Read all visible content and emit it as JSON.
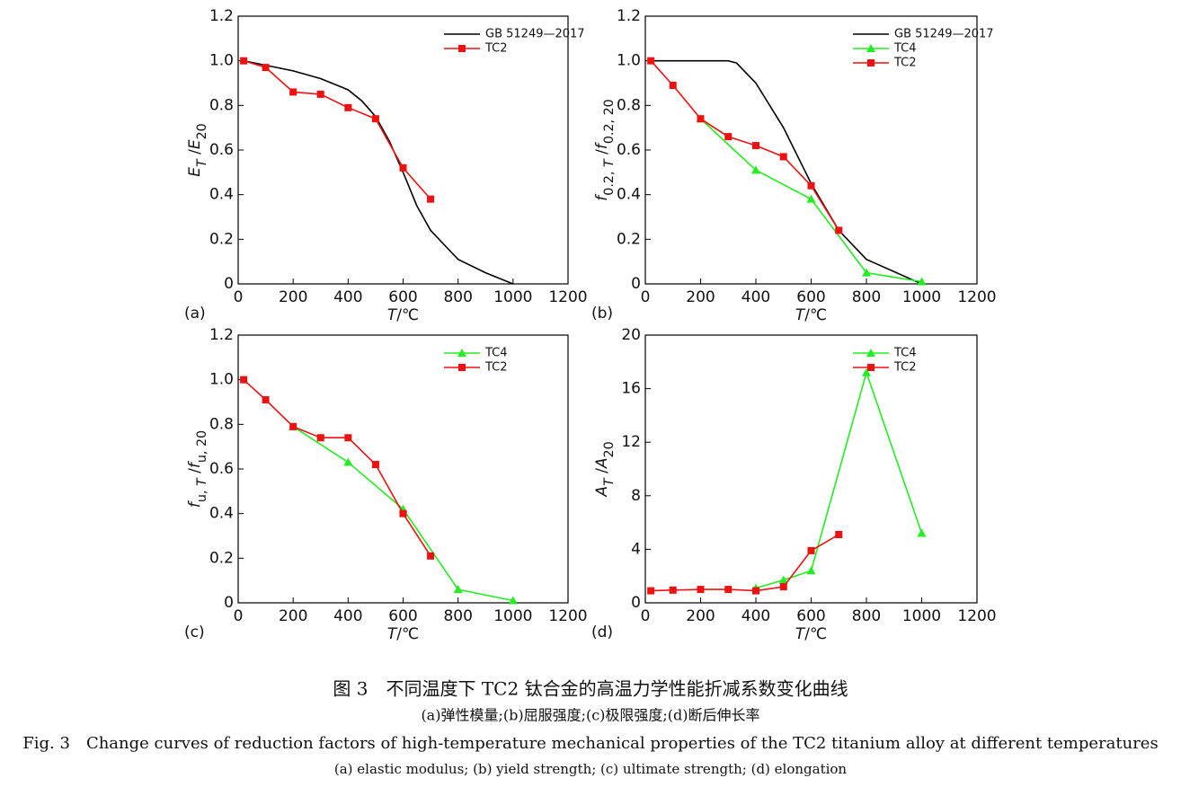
{
  "chart_data": [
    {
      "type": "line",
      "panel_label": "(a)",
      "xlabel": [
        {
          "text": "T",
          "italic": true
        },
        {
          "text": "/℃"
        }
      ],
      "ylabel": [
        {
          "text": "E",
          "italic": true
        },
        {
          "text": "T",
          "italic": true,
          "sub": true
        },
        {
          "text": " /"
        },
        {
          "text": "E",
          "italic": true
        },
        {
          "text": "20",
          "sub": true
        }
      ],
      "xlim": [
        0,
        1200
      ],
      "ylim": [
        0,
        1.2
      ],
      "xticks": [
        0,
        200,
        400,
        600,
        800,
        1000,
        1200
      ],
      "yticks": [
        0,
        0.2,
        0.4,
        0.6,
        0.8,
        {
          "value": 1,
          "label": "1.0"
        },
        {
          "value": 1.2,
          "label": "1.2"
        }
      ],
      "series": [
        {
          "name": "GB 51249—2017",
          "color": "#000000",
          "x": [
            20,
            100,
            200,
            300,
            400,
            450,
            500,
            550,
            600,
            650,
            700,
            800,
            900,
            1000
          ],
          "values": [
            1.0,
            0.98,
            0.955,
            0.92,
            0.87,
            0.82,
            0.75,
            0.64,
            0.5,
            0.35,
            0.24,
            0.11,
            0.05,
            0
          ]
        },
        {
          "name": "TC2",
          "color": "#ee1111",
          "marker": "square",
          "x": [
            20,
            100,
            200,
            300,
            400,
            500,
            600,
            700
          ],
          "values": [
            1.0,
            0.97,
            0.86,
            0.85,
            0.79,
            0.74,
            0.52,
            0.38
          ]
        }
      ]
    },
    {
      "type": "line",
      "panel_label": "(b)",
      "xlabel": [
        {
          "text": "T",
          "italic": true
        },
        {
          "text": "/℃"
        }
      ],
      "ylabel": [
        {
          "text": "f",
          "italic": true
        },
        {
          "text": "0.2, ",
          "sub": true
        },
        {
          "text": "T",
          "italic": true,
          "sub": true
        },
        {
          "text": " /"
        },
        {
          "text": "f",
          "italic": true
        },
        {
          "text": "0.2, 20",
          "sub": true
        }
      ],
      "xlim": [
        0,
        1200
      ],
      "ylim": [
        0,
        1.2
      ],
      "xticks": [
        0,
        200,
        400,
        600,
        800,
        1000,
        1200
      ],
      "yticks": [
        0,
        0.2,
        0.4,
        0.6,
        0.8,
        {
          "value": 1,
          "label": "1.0"
        },
        {
          "value": 1.2,
          "label": "1.2"
        }
      ],
      "series": [
        {
          "name": "GB 51249—2017",
          "color": "#000000",
          "x": [
            20,
            300,
            330,
            400,
            500,
            600,
            700,
            800,
            1000
          ],
          "values": [
            1.0,
            1.0,
            0.99,
            0.9,
            0.7,
            0.45,
            0.24,
            0.11,
            0
          ]
        },
        {
          "name": "TC4",
          "color": "#22ee22",
          "marker": "triangle",
          "x": [
            200,
            400,
            600,
            800,
            1000
          ],
          "values": [
            0.74,
            0.51,
            0.38,
            0.05,
            0.01
          ]
        },
        {
          "name": "TC2",
          "color": "#ee1111",
          "marker": "square",
          "x": [
            20,
            100,
            200,
            300,
            400,
            500,
            600,
            700
          ],
          "values": [
            1.0,
            0.89,
            0.74,
            0.66,
            0.62,
            0.57,
            0.44,
            0.24
          ]
        }
      ]
    },
    {
      "type": "line",
      "panel_label": "(c)",
      "xlabel": [
        {
          "text": "T",
          "italic": true
        },
        {
          "text": "/℃"
        }
      ],
      "ylabel": [
        {
          "text": "f",
          "italic": true
        },
        {
          "text": "u, ",
          "sub": true
        },
        {
          "text": "T",
          "italic": true,
          "sub": true
        },
        {
          "text": " /"
        },
        {
          "text": "f",
          "italic": true
        },
        {
          "text": "u, 20",
          "sub": true
        }
      ],
      "xlim": [
        0,
        1200
      ],
      "ylim": [
        0,
        1.2
      ],
      "xticks": [
        0,
        200,
        400,
        600,
        800,
        1000,
        1200
      ],
      "yticks": [
        0,
        0.2,
        0.4,
        0.6,
        0.8,
        {
          "value": 1,
          "label": "1.0"
        },
        {
          "value": 1.2,
          "label": "1.2"
        }
      ],
      "series": [
        {
          "name": "TC4",
          "color": "#22ee22",
          "marker": "triangle",
          "x": [
            200,
            400,
            600,
            800,
            1000
          ],
          "values": [
            0.79,
            0.63,
            0.42,
            0.06,
            0.01
          ]
        },
        {
          "name": "TC2",
          "color": "#ee1111",
          "marker": "square",
          "x": [
            20,
            100,
            200,
            300,
            400,
            500,
            600,
            700
          ],
          "values": [
            1.0,
            0.91,
            0.79,
            0.74,
            0.74,
            0.62,
            0.4,
            0.21
          ]
        }
      ]
    },
    {
      "type": "line",
      "panel_label": "(d)",
      "xlabel": [
        {
          "text": "T",
          "italic": true
        },
        {
          "text": "/℃"
        }
      ],
      "ylabel": [
        {
          "text": "A",
          "italic": true
        },
        {
          "text": "T",
          "italic": true,
          "sub": true
        },
        {
          "text": " /"
        },
        {
          "text": "A",
          "italic": true
        },
        {
          "text": "20",
          "sub": true
        }
      ],
      "xlim": [
        0,
        1200
      ],
      "ylim": [
        0,
        20
      ],
      "xticks": [
        0,
        200,
        400,
        600,
        800,
        1000,
        1200
      ],
      "yticks": [
        0,
        4,
        8,
        12,
        16,
        20
      ],
      "series": [
        {
          "name": "TC4",
          "color": "#22ee22",
          "marker": "triangle",
          "x": [
            400,
            500,
            600,
            800,
            1000
          ],
          "values": [
            1.1,
            1.7,
            2.4,
            17.2,
            5.2
          ]
        },
        {
          "name": "TC2",
          "color": "#ee1111",
          "marker": "square",
          "x": [
            20,
            100,
            200,
            300,
            400,
            500,
            600,
            700
          ],
          "values": [
            0.9,
            0.95,
            1.0,
            1.0,
            0.9,
            1.2,
            3.9,
            5.1
          ]
        }
      ]
    }
  ],
  "caption": {
    "cn_title": "图 3　不同温度下 TC2 钛合金的高温力学性能折减系数变化曲线",
    "cn_sub": "(a)弹性模量;(b)屈服强度;(c)极限强度;(d)断后伸长率",
    "en_title": "Fig. 3　Change curves of reduction factors of high-temperature mechanical properties of the TC2 titanium alloy at different temperatures",
    "en_sub": "(a) elastic modulus; (b) yield strength; (c) ultimate strength; (d) elongation"
  }
}
